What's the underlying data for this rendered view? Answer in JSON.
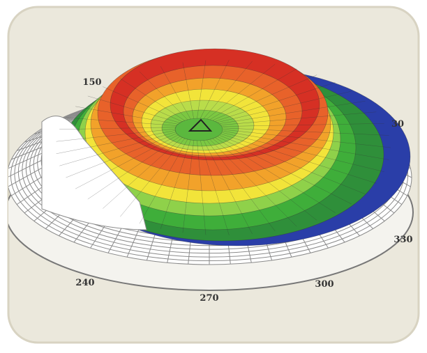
{
  "axis_labels": [
    "150",
    "30",
    "330",
    "300",
    "270",
    "240"
  ]
}
